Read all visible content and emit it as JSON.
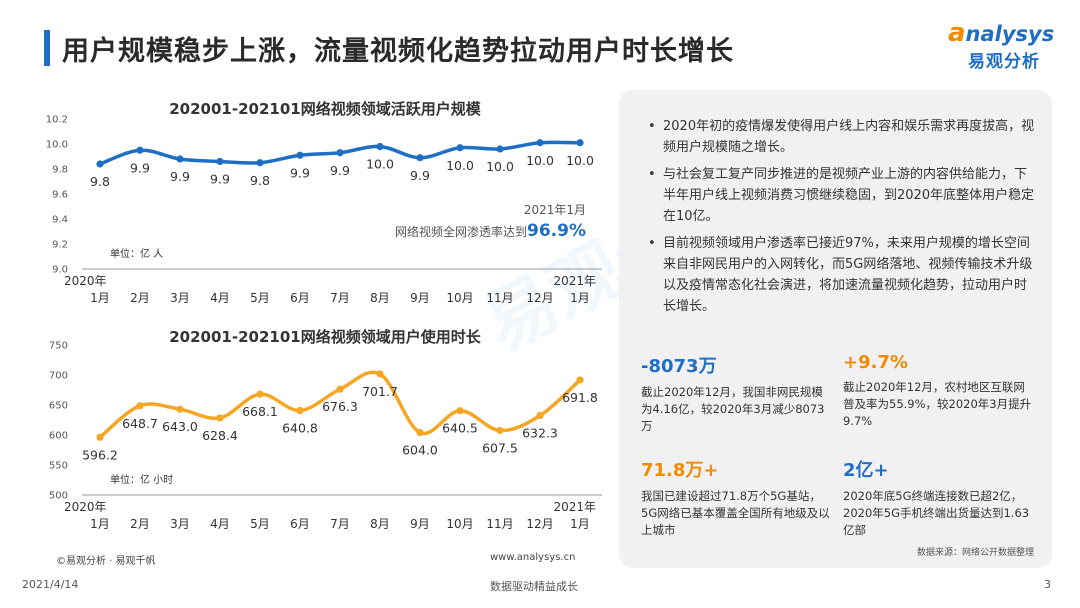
{
  "header": {
    "title": "用户规模稳步上涨，流量视频化趋势拉动用户时长增长",
    "logo_en_first": "a",
    "logo_en_rest": "nalysys",
    "logo_cn": "易观分析"
  },
  "watermark": "易观分析",
  "colors": {
    "chart1_line": "#1e6fc4",
    "chart2_line": "#f5a623",
    "stat_blue": "#1e6fc4",
    "stat_orange": "#f28b00"
  },
  "chart1_note": {
    "date": "2021年1月",
    "label": "网络视频全网渗透率达到",
    "value": "96.9%"
  },
  "chart_data": [
    {
      "type": "line",
      "title": "202001-202101网络视频领域活跃用户规模",
      "unit_label": "单位：亿 人",
      "categories": [
        "2020年\n1月",
        "2月",
        "3月",
        "4月",
        "5月",
        "6月",
        "7月",
        "8月",
        "9月",
        "10月",
        "11月",
        "12月",
        "2021年\n1月"
      ],
      "values": [
        9.84,
        9.95,
        9.88,
        9.86,
        9.85,
        9.91,
        9.93,
        9.98,
        9.89,
        9.97,
        9.96,
        10.01,
        10.01
      ],
      "data_labels": [
        "9.8",
        "9.9",
        "9.9",
        "9.9",
        "9.8",
        "9.9",
        "9.9",
        "10.0",
        "9.9",
        "10.0",
        "10.0",
        "10.0",
        "10.0"
      ],
      "ylim": [
        9.0,
        10.2
      ],
      "yticks": [
        "9.0",
        "9.2",
        "9.4",
        "9.6",
        "9.8",
        "10.0",
        "10.2"
      ],
      "grid": false
    },
    {
      "type": "line",
      "title": "202001-202101网络视频领域用户使用时长",
      "unit_label": "单位：亿 小时",
      "categories": [
        "2020年\n1月",
        "2月",
        "3月",
        "4月",
        "5月",
        "6月",
        "7月",
        "8月",
        "9月",
        "10月",
        "11月",
        "12月",
        "2021年\n1月"
      ],
      "values": [
        596.2,
        648.7,
        643.0,
        628.4,
        668.1,
        640.8,
        676.3,
        701.7,
        604.0,
        640.5,
        607.5,
        632.3,
        691.8
      ],
      "data_labels": [
        "596.2",
        "648.7",
        "643.0",
        "628.4",
        "668.1",
        "640.8",
        "676.3",
        "701.7",
        "604.0",
        "640.5",
        "607.5",
        "632.3",
        "691.8"
      ],
      "ylim": [
        500,
        750
      ],
      "yticks": [
        "500",
        "550",
        "600",
        "650",
        "700",
        "750"
      ],
      "grid": false
    }
  ],
  "footer_left": {
    "copyright": "©易观分析 · 易观千帆",
    "site": "www.analysys.cn"
  },
  "panel": {
    "bullets": [
      "2020年初的疫情爆发使得用户线上内容和娱乐需求再度拔高，视频用户规模随之增长。",
      "与社会复工复产同步推进的是视频产业上游的内容供给能力，下半年用户线上视频消费习惯继续稳固，到2020年底整体用户稳定在10亿。",
      "目前视频领域用户渗透率已接近97%，未来用户规模的增长空间来自非网民用户的入网转化，而5G网络落地、视频传输技术升级以及疫情常态化社会演进，将加速流量视频化趋势，拉动用户时长增长。"
    ],
    "stats": [
      {
        "value": "-8073万",
        "desc": "截止2020年12月，我国非网民规模为4.16亿，较2020年3月减少8073万"
      },
      {
        "value": "+9.7%",
        "desc": "截止2020年12月，农村地区互联网普及率为55.9%，较2020年3月提升9.7%"
      },
      {
        "value": "71.8万+",
        "desc": "我国已建设超过71.8万个5G基站，5G网络已基本覆盖全国所有地级及以上城市"
      },
      {
        "value": "2亿+",
        "desc": "2020年底5G终端连接数已超2亿，2020年5G手机终端出货量达到1.63亿部"
      }
    ],
    "source": "数据来源：网络公开数据整理"
  },
  "footer": {
    "date": "2021/4/14",
    "slogan": "数据驱动精益成长",
    "page": "3"
  }
}
